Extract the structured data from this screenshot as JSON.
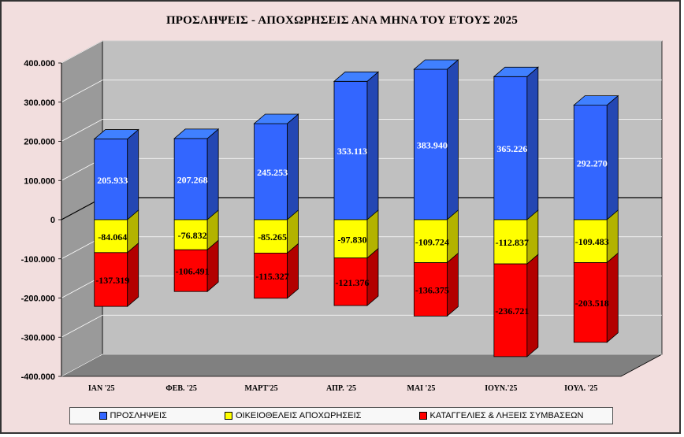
{
  "chart_data": {
    "type": "bar",
    "stacked": true,
    "three_d": true,
    "title": "ΠΡΟΣΛΗΨΕΙΣ - ΑΠΟΧΩΡΗΣΕΙΣ  ΑΝΑ ΜΗΝΑ ΤΟΥ  ΕΤΟΥΣ  2025",
    "categories": [
      "ΙΑΝ '25",
      "ΦΕΒ. '25",
      "ΜΑΡΤ'25",
      "ΑΠΡ. '25",
      "ΜΑΙ '25",
      "ΙΟΥΝ.'25",
      "ΙΟΥΛ. '25"
    ],
    "series": [
      {
        "name": "ΠΡΟΣΛΗΨΕΙΣ",
        "color": "#3366ff",
        "values": [
          205933,
          207268,
          245253,
          353113,
          383940,
          365226,
          292270
        ],
        "labels": [
          "205.933",
          "207.268",
          "245.253",
          "353.113",
          "383.940",
          "365.226",
          "292.270"
        ]
      },
      {
        "name": "ΟΙΚΕΙΟΘΕΛΕΙΣ ΑΠΟΧΩΡΗΣΕΙΣ",
        "color": "#ffff00",
        "values": [
          -84064,
          -76832,
          -85265,
          -97830,
          -109724,
          -112837,
          -109483
        ],
        "labels": [
          "-84.064",
          "-76.832",
          "-85.265",
          "-97.830",
          "-109.724",
          "-112.837",
          "-109.483"
        ]
      },
      {
        "name": "ΚΑΤΑΓΓΕΛΙΕΣ & ΛΗΞΕΙΣ ΣΥΜΒΑΣΕΩΝ",
        "color": "#ff0000",
        "values": [
          -137319,
          -106491,
          -115327,
          -121376,
          -136375,
          -236721,
          -203518
        ],
        "labels": [
          "-137.319",
          "-106.491",
          "-115.327",
          "-121.376",
          "-136.375",
          "-236.721",
          "-203.518"
        ]
      }
    ],
    "ylim": [
      -400000,
      400000
    ],
    "yticks": [
      400000,
      300000,
      200000,
      100000,
      0,
      -100000,
      -200000,
      -300000,
      -400000
    ],
    "ytick_labels": [
      "400.000",
      "300.000",
      "200.000",
      "100.000",
      "0",
      "-100.000",
      "-200.000",
      "-300.000",
      "-400.000"
    ],
    "grid": true,
    "legend_position": "bottom",
    "colors": {
      "plot_wall": "#c0c0c0",
      "plot_floor": "#808080",
      "background": "#f2dede"
    }
  }
}
